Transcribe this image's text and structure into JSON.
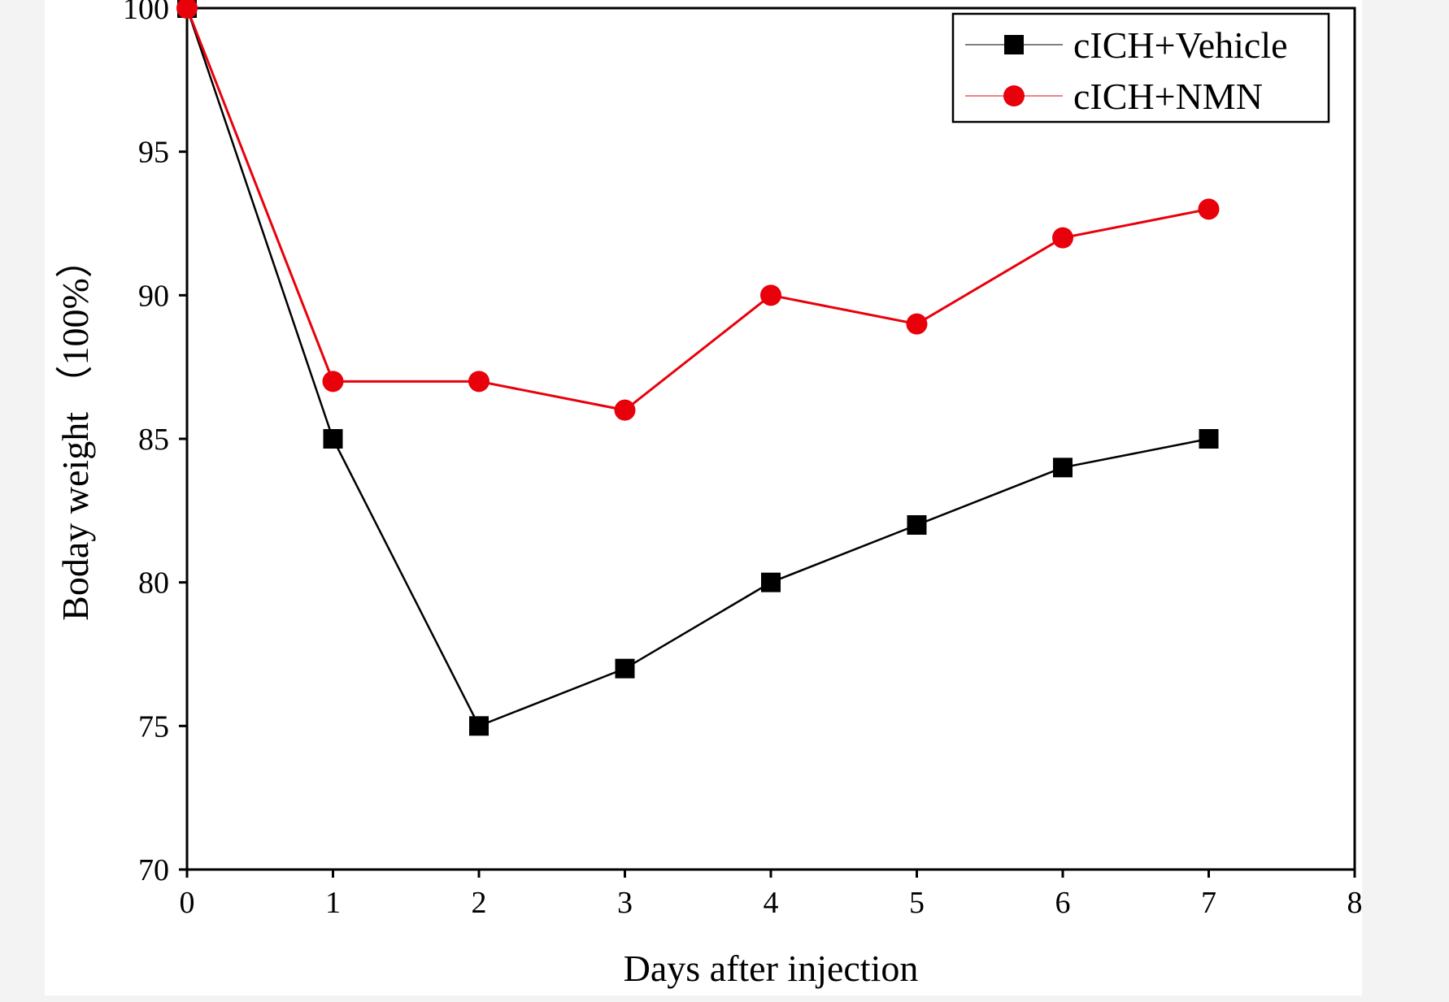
{
  "chart_data": {
    "type": "line",
    "xlabel": "Days after injection",
    "ylabel": "Boday weight （100%）",
    "xlim": [
      0,
      8
    ],
    "ylim": [
      70,
      100
    ],
    "x_ticks": [
      "0",
      "1",
      "2",
      "3",
      "4",
      "5",
      "6",
      "7",
      "8"
    ],
    "y_ticks": [
      "70",
      "75",
      "80",
      "85",
      "90",
      "95",
      "100"
    ],
    "grid": false,
    "legend_position": "top-right",
    "series": [
      {
        "name": "cICH+Vehicle",
        "color": "#000000",
        "marker": "square",
        "x": [
          0,
          1,
          2,
          3,
          4,
          5,
          6,
          7
        ],
        "y": [
          100,
          85,
          75,
          77,
          80,
          82,
          84,
          85
        ]
      },
      {
        "name": "cICH+NMN",
        "color": "#e8000b",
        "marker": "circle",
        "x": [
          0,
          1,
          2,
          3,
          4,
          5,
          6,
          7
        ],
        "y": [
          100,
          87,
          87,
          86,
          90,
          89,
          92,
          93
        ]
      }
    ]
  }
}
